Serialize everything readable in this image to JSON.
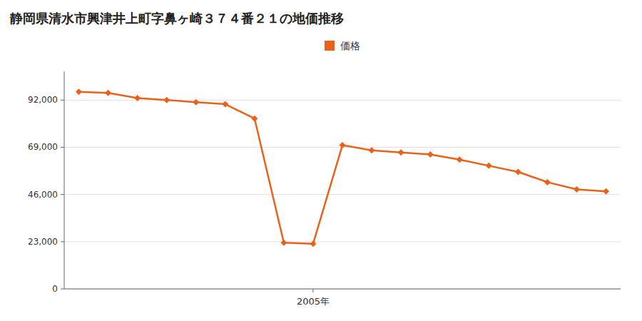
{
  "chart_data": {
    "type": "line",
    "title": "静岡県清水市興津井上町字鼻ヶ崎３７４番２１の地価推移",
    "x": [
      1997,
      1998,
      1999,
      2000,
      2001,
      2002,
      2003,
      2004,
      2005,
      2006,
      2007,
      2008,
      2009,
      2010,
      2011,
      2012,
      2013,
      2014,
      2015
    ],
    "series": [
      {
        "name": "価格",
        "color": "#E8621A",
        "marker": "diamond",
        "values": [
          96000,
          95500,
          93000,
          92000,
          91000,
          90000,
          83000,
          22500,
          22000,
          70000,
          67500,
          66500,
          65500,
          63000,
          60000,
          57000,
          52000,
          48500,
          47500
        ]
      }
    ],
    "xlim": [
      1996.5,
      2015.5
    ],
    "xticks": [
      {
        "value": 2005,
        "label": "2005年"
      }
    ],
    "ylim": [
      0,
      106000
    ],
    "yticks": [
      0,
      {
        "value": 23000,
        "label": "23,000"
      },
      {
        "value": 46000,
        "label": "46,000"
      },
      {
        "value": 69000,
        "label": "69,000"
      },
      {
        "value": 92000,
        "label": "92,000"
      }
    ],
    "grid": true,
    "legend": "top"
  }
}
